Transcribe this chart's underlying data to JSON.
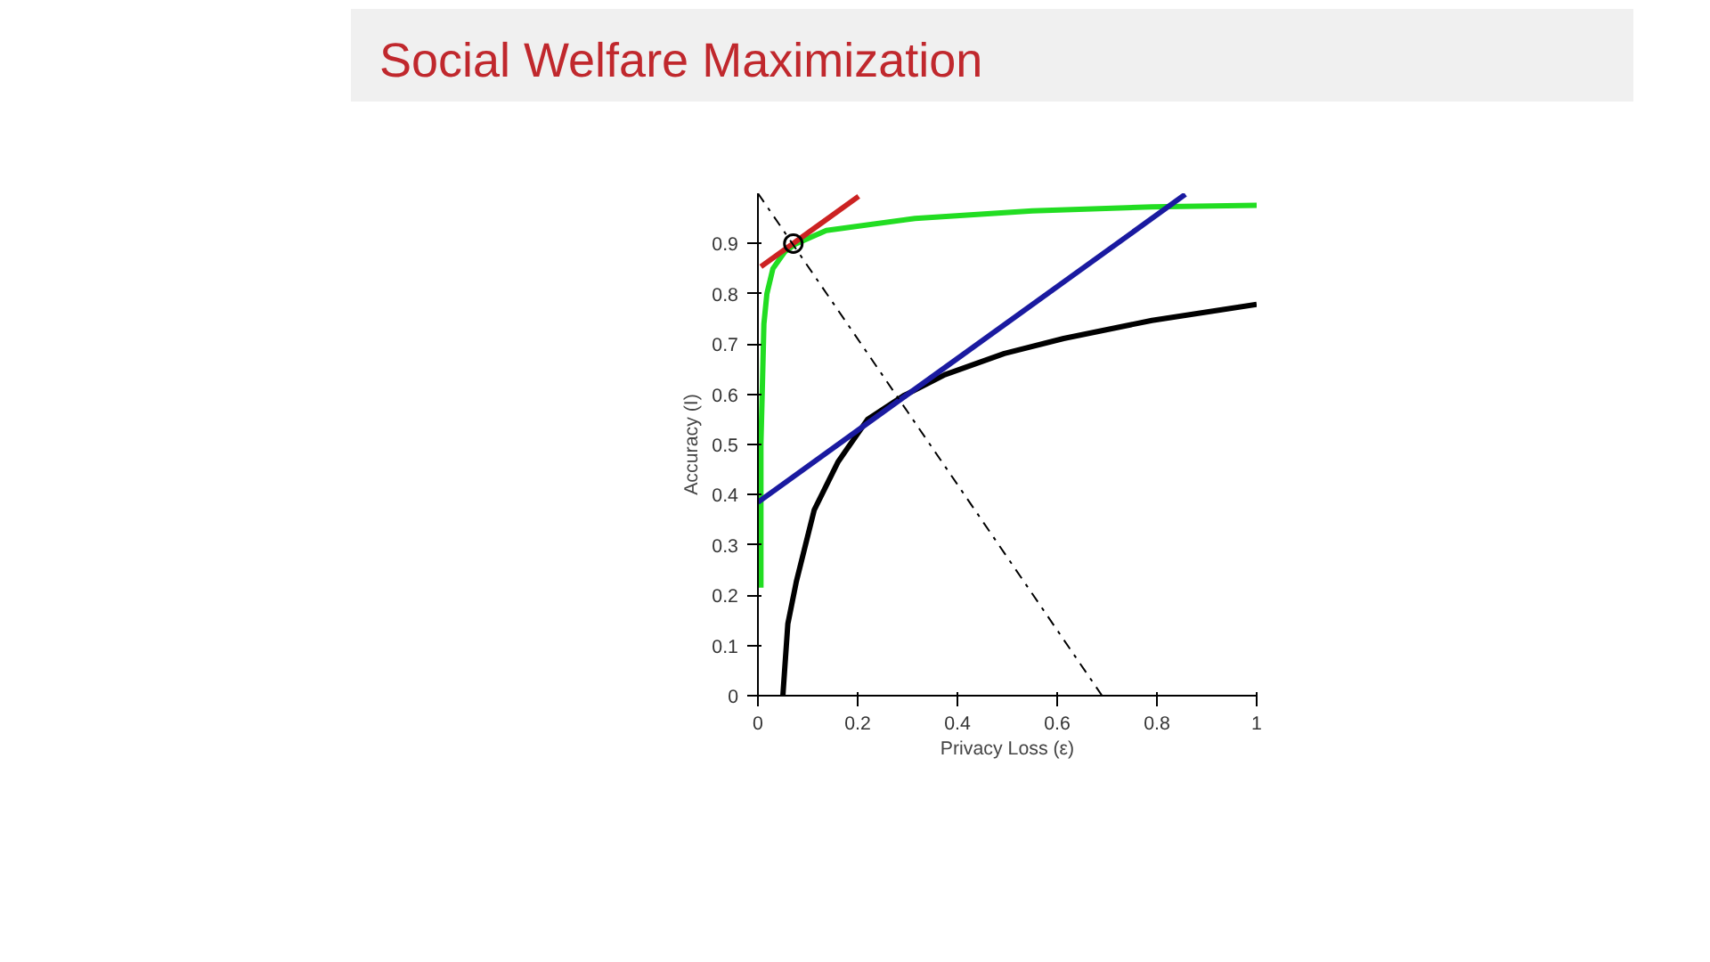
{
  "chart_data": {
    "type": "line",
    "title": "Social Welfare Maximization",
    "xlabel": "Privacy Loss (ε)",
    "ylabel": "Accuracy (I)",
    "xlim": [
      0,
      1
    ],
    "ylim": [
      0,
      1
    ],
    "xticks": [
      0,
      0.2,
      0.4,
      0.6,
      0.8,
      1
    ],
    "yticks": [
      0,
      0.1,
      0.2,
      0.3,
      0.4,
      0.5,
      0.6,
      0.7,
      0.8,
      0.9
    ],
    "grid": false,
    "series": [
      {
        "color": "#22dd22",
        "x": [
          0.006,
          0.006,
          0.012,
          0.018,
          0.03,
          0.054,
          0.077,
          0.137,
          0.315,
          0.55,
          0.79,
          1
        ],
        "values": [
          0.215,
          0.5,
          0.74,
          0.8,
          0.85,
          0.884,
          0.9,
          0.926,
          0.95,
          0.965,
          0.973,
          0.976
        ]
      },
      {
        "color": "#000000",
        "x": [
          0.05,
          0.06,
          0.077,
          0.113,
          0.161,
          0.22,
          0.292,
          0.375,
          0.494,
          0.613,
          0.79,
          1
        ],
        "values": [
          0,
          0.143,
          0.227,
          0.37,
          0.466,
          0.55,
          0.597,
          0.639,
          0.681,
          0.711,
          0.747,
          0.779
        ]
      },
      {
        "color": "#1a1aa0",
        "x": [
          0,
          0.857
        ],
        "values": [
          0.385,
          0.998
        ]
      },
      {
        "color": "#cc2222",
        "x": [
          0.006,
          0.202
        ],
        "values": [
          0.854,
          0.994
        ]
      },
      {
        "color": "#000000",
        "line_style": "dashdot",
        "x": [
          0,
          0.69
        ],
        "values": [
          1.0,
          0
        ]
      },
      {
        "type": "scatter",
        "color": "#000000",
        "marker": "circle",
        "x": [
          0.071
        ],
        "values": [
          0.9
        ]
      }
    ]
  }
}
